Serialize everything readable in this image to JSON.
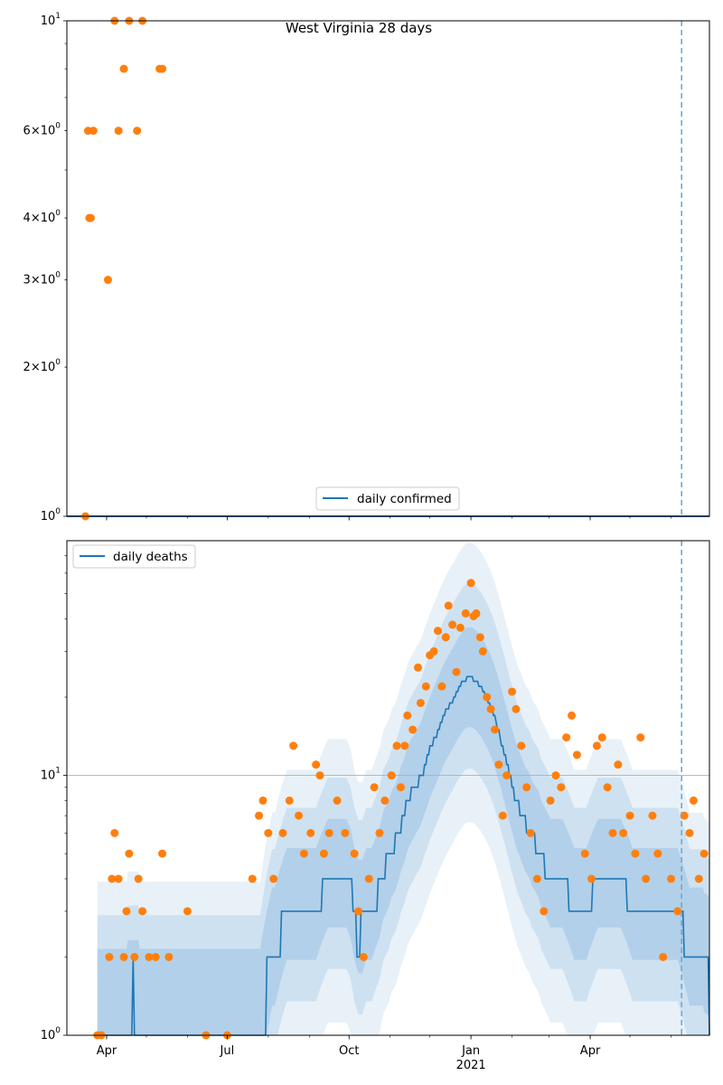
{
  "chart_data": [
    {
      "type": "scatter",
      "title": "West Virginia 28 days",
      "yscale": "log",
      "ylim": [
        1,
        10
      ],
      "y_ticks": [
        {
          "value": 1,
          "label": "10^0"
        },
        {
          "value": 2,
          "label": "2×10^0"
        },
        {
          "value": 3,
          "label": "3×10^0"
        },
        {
          "value": 4,
          "label": "4×10^0"
        },
        {
          "value": 6,
          "label": "6×10^0"
        },
        {
          "value": 10,
          "label": "10^1"
        }
      ],
      "xlim": [
        "2020-03-02",
        "2021-06-30"
      ],
      "forecast_date": "2021-06-09",
      "legend": {
        "position": "bottom-center",
        "entries": [
          "daily confirmed"
        ]
      },
      "series": [
        {
          "name": "daily confirmed",
          "style": "line",
          "color": "#1f77b4",
          "points": [
            [
              "2020-03-02",
              1
            ],
            [
              "2021-06-30",
              1
            ]
          ]
        },
        {
          "style": "scatter",
          "color": "#ff7f0e",
          "points": [
            [
              "2020-03-16",
              1
            ],
            [
              "2020-03-18",
              6
            ],
            [
              "2020-03-19",
              4
            ],
            [
              "2020-03-20",
              4
            ],
            [
              "2020-03-22",
              6
            ],
            [
              "2020-04-02",
              3
            ],
            [
              "2020-04-07",
              10
            ],
            [
              "2020-04-10",
              6
            ],
            [
              "2020-04-14",
              8
            ],
            [
              "2020-04-18",
              10
            ],
            [
              "2020-04-24",
              6
            ],
            [
              "2020-04-28",
              10
            ],
            [
              "2020-05-11",
              8
            ],
            [
              "2020-05-13",
              8
            ]
          ]
        }
      ]
    },
    {
      "type": "scatter",
      "yscale": "log",
      "ylim": [
        1,
        80
      ],
      "grid": "horizontal at 10",
      "y_ticks": [
        {
          "value": 1,
          "label": "10^0"
        },
        {
          "value": 10,
          "label": "10^1"
        }
      ],
      "x_ticks": [
        {
          "value": "2020-04-01",
          "label": "Apr"
        },
        {
          "value": "2020-07-01",
          "label": "Jul"
        },
        {
          "value": "2020-10-01",
          "label": "Oct"
        },
        {
          "value": "2021-01-01",
          "label": "Jan",
          "sublabel": "2021"
        },
        {
          "value": "2021-04-01",
          "label": "Apr"
        }
      ],
      "xlim": [
        "2020-03-02",
        "2021-06-30"
      ],
      "forecast_date": "2021-06-09",
      "legend": {
        "position": "top-left",
        "entries": [
          "daily deaths"
        ]
      },
      "series": [
        {
          "name": "daily deaths",
          "style": "line",
          "color": "#1f77b4",
          "points": [
            [
              "2020-03-25",
              1
            ],
            [
              "2020-04-20",
              1
            ],
            [
              "2020-04-21",
              2
            ],
            [
              "2020-04-22",
              1
            ],
            [
              "2020-07-30",
              1
            ],
            [
              "2020-07-31",
              2
            ],
            [
              "2020-08-10",
              2
            ],
            [
              "2020-08-11",
              3
            ],
            [
              "2020-09-10",
              3
            ],
            [
              "2020-09-11",
              4
            ],
            [
              "2020-10-02",
              4
            ],
            [
              "2020-10-08",
              2
            ],
            [
              "2020-10-12",
              3
            ],
            [
              "2020-10-20",
              3
            ],
            [
              "2020-10-25",
              4
            ],
            [
              "2020-11-02",
              5
            ],
            [
              "2020-11-08",
              6
            ],
            [
              "2020-11-14",
              8
            ],
            [
              "2020-11-20",
              9
            ],
            [
              "2020-11-26",
              10
            ],
            [
              "2020-12-02",
              13
            ],
            [
              "2020-12-08",
              15
            ],
            [
              "2020-12-14",
              18
            ],
            [
              "2020-12-20",
              20
            ],
            [
              "2020-12-26",
              23
            ],
            [
              "2021-01-01",
              24
            ],
            [
              "2021-01-08",
              22
            ],
            [
              "2021-01-14",
              19
            ],
            [
              "2021-01-20",
              16
            ],
            [
              "2021-01-26",
              12
            ],
            [
              "2021-02-01",
              9
            ],
            [
              "2021-02-08",
              7
            ],
            [
              "2021-02-15",
              6
            ],
            [
              "2021-02-22",
              5
            ],
            [
              "2021-03-01",
              4
            ],
            [
              "2021-03-10",
              4
            ],
            [
              "2021-03-20",
              3
            ],
            [
              "2021-03-31",
              3
            ],
            [
              "2021-04-05",
              4
            ],
            [
              "2021-04-25",
              4
            ],
            [
              "2021-05-01",
              3
            ],
            [
              "2021-06-09",
              3
            ],
            [
              "2021-06-12",
              2
            ],
            [
              "2021-06-28",
              2
            ],
            [
              "2021-06-30",
              1
            ]
          ]
        },
        {
          "style": "scatter",
          "color": "#ff7f0e",
          "points": [
            [
              "2020-03-25",
              1
            ],
            [
              "2020-03-28",
              1
            ],
            [
              "2020-04-03",
              2
            ],
            [
              "2020-04-05",
              4
            ],
            [
              "2020-04-07",
              6
            ],
            [
              "2020-04-10",
              4
            ],
            [
              "2020-04-14",
              2
            ],
            [
              "2020-04-16",
              3
            ],
            [
              "2020-04-18",
              5
            ],
            [
              "2020-04-22",
              2
            ],
            [
              "2020-04-25",
              4
            ],
            [
              "2020-04-28",
              3
            ],
            [
              "2020-05-03",
              2
            ],
            [
              "2020-05-08",
              2
            ],
            [
              "2020-05-13",
              5
            ],
            [
              "2020-05-18",
              2
            ],
            [
              "2020-06-01",
              3
            ],
            [
              "2020-06-15",
              1
            ],
            [
              "2020-07-01",
              1
            ],
            [
              "2020-07-20",
              4
            ],
            [
              "2020-07-25",
              7
            ],
            [
              "2020-07-28",
              8
            ],
            [
              "2020-08-01",
              6
            ],
            [
              "2020-08-05",
              4
            ],
            [
              "2020-08-12",
              6
            ],
            [
              "2020-08-17",
              8
            ],
            [
              "2020-08-20",
              13
            ],
            [
              "2020-08-24",
              7
            ],
            [
              "2020-08-28",
              5
            ],
            [
              "2020-09-02",
              6
            ],
            [
              "2020-09-06",
              11
            ],
            [
              "2020-09-09",
              10
            ],
            [
              "2020-09-12",
              5
            ],
            [
              "2020-09-16",
              6
            ],
            [
              "2020-09-22",
              8
            ],
            [
              "2020-09-28",
              6
            ],
            [
              "2020-10-05",
              5
            ],
            [
              "2020-10-08",
              3
            ],
            [
              "2020-10-12",
              2
            ],
            [
              "2020-10-16",
              4
            ],
            [
              "2020-10-20",
              9
            ],
            [
              "2020-10-24",
              6
            ],
            [
              "2020-10-28",
              8
            ],
            [
              "2020-11-02",
              10
            ],
            [
              "2020-11-06",
              13
            ],
            [
              "2020-11-09",
              9
            ],
            [
              "2020-11-12",
              13
            ],
            [
              "2020-11-14",
              17
            ],
            [
              "2020-11-18",
              15
            ],
            [
              "2020-11-22",
              26
            ],
            [
              "2020-11-24",
              19
            ],
            [
              "2020-11-28",
              22
            ],
            [
              "2020-12-01",
              29
            ],
            [
              "2020-12-04",
              30
            ],
            [
              "2020-12-07",
              36
            ],
            [
              "2020-12-10",
              22
            ],
            [
              "2020-12-13",
              34
            ],
            [
              "2020-12-15",
              45
            ],
            [
              "2020-12-18",
              38
            ],
            [
              "2020-12-21",
              25
            ],
            [
              "2020-12-24",
              37
            ],
            [
              "2020-12-28",
              42
            ],
            [
              "2021-01-01",
              55
            ],
            [
              "2021-01-03",
              41
            ],
            [
              "2021-01-05",
              42
            ],
            [
              "2021-01-08",
              34
            ],
            [
              "2021-01-10",
              30
            ],
            [
              "2021-01-13",
              20
            ],
            [
              "2021-01-16",
              18
            ],
            [
              "2021-01-19",
              15
            ],
            [
              "2021-01-22",
              11
            ],
            [
              "2021-01-25",
              7
            ],
            [
              "2021-01-28",
              10
            ],
            [
              "2021-02-01",
              21
            ],
            [
              "2021-02-04",
              18
            ],
            [
              "2021-02-08",
              13
            ],
            [
              "2021-02-12",
              9
            ],
            [
              "2021-02-15",
              6
            ],
            [
              "2021-02-20",
              4
            ],
            [
              "2021-02-25",
              3
            ],
            [
              "2021-03-02",
              8
            ],
            [
              "2021-03-06",
              10
            ],
            [
              "2021-03-10",
              9
            ],
            [
              "2021-03-14",
              14
            ],
            [
              "2021-03-18",
              17
            ],
            [
              "2021-03-22",
              12
            ],
            [
              "2021-03-28",
              5
            ],
            [
              "2021-04-02",
              4
            ],
            [
              "2021-04-06",
              13
            ],
            [
              "2021-04-10",
              14
            ],
            [
              "2021-04-14",
              9
            ],
            [
              "2021-04-18",
              6
            ],
            [
              "2021-04-22",
              11
            ],
            [
              "2021-04-26",
              6
            ],
            [
              "2021-05-01",
              7
            ],
            [
              "2021-05-05",
              5
            ],
            [
              "2021-05-09",
              14
            ],
            [
              "2021-05-13",
              4
            ],
            [
              "2021-05-18",
              7
            ],
            [
              "2021-05-22",
              5
            ],
            [
              "2021-05-26",
              2
            ],
            [
              "2021-06-01",
              4
            ],
            [
              "2021-06-06",
              3
            ],
            [
              "2021-06-11",
              7
            ],
            [
              "2021-06-15",
              6
            ],
            [
              "2021-06-18",
              8
            ],
            [
              "2021-06-22",
              4
            ],
            [
              "2021-06-26",
              5
            ]
          ]
        }
      ]
    }
  ]
}
